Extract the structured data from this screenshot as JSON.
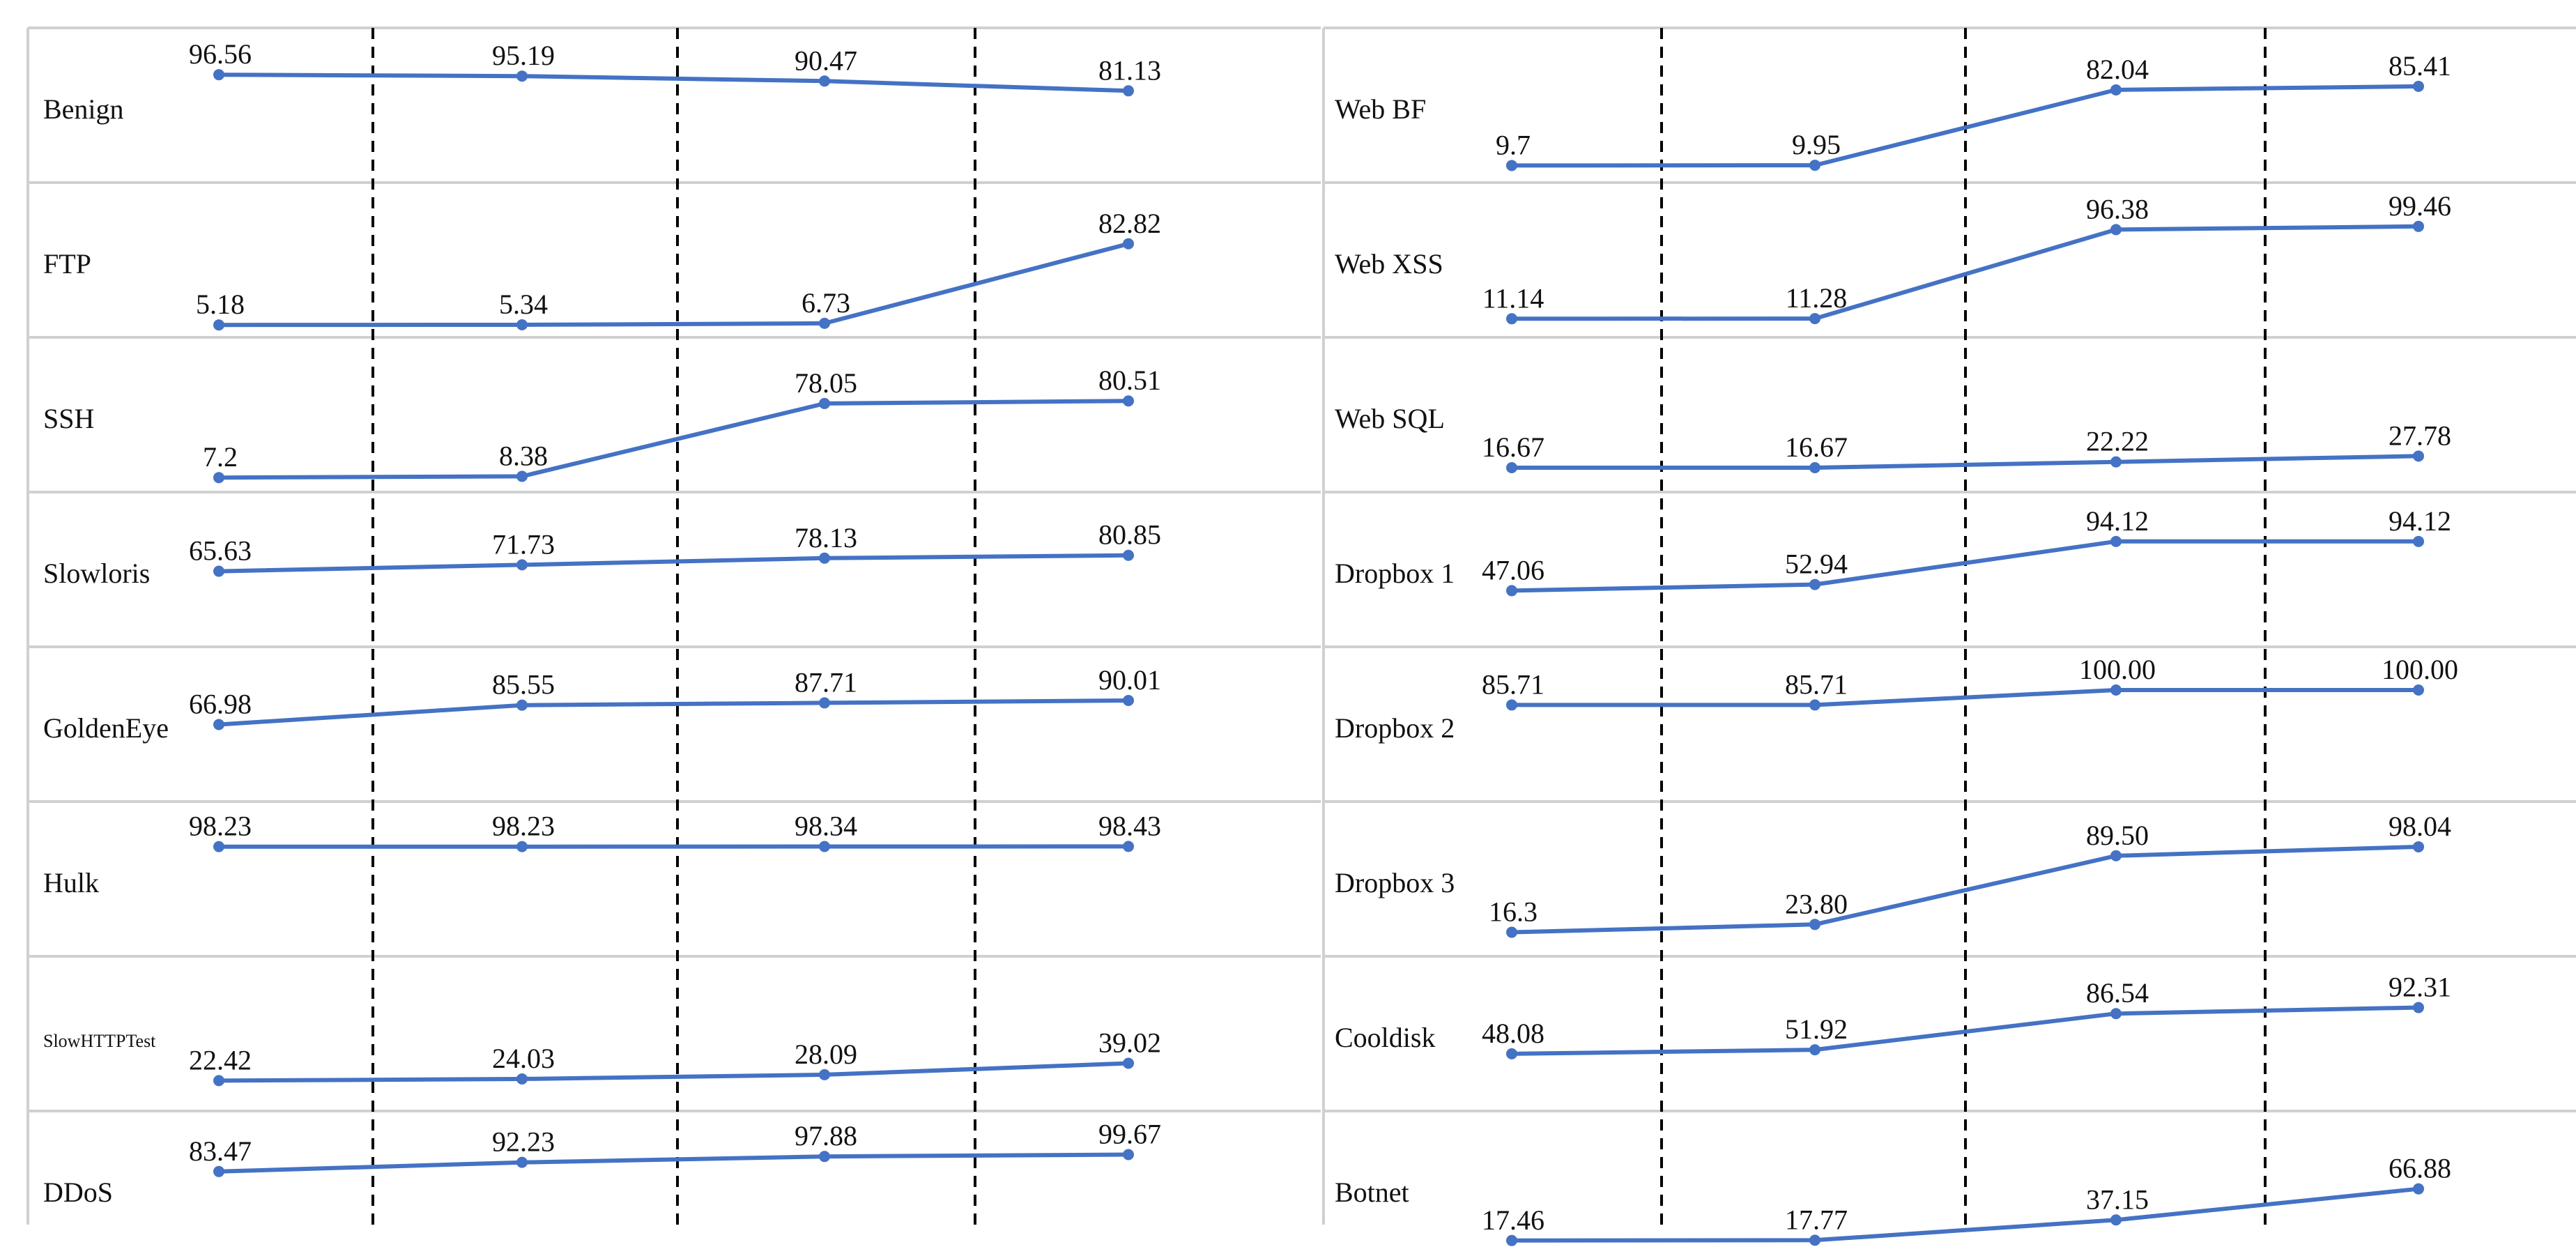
{
  "chart_data": {
    "type": "line",
    "colors": {
      "line": "#4472c4",
      "grid": "#d0d0d0",
      "divider": "#000000"
    },
    "panels": [
      {
        "rows": [
          {
            "label": "Benign",
            "values": [
              96.56,
              95.19,
              90.47,
              81.13
            ],
            "value_labels": [
              "96.56",
              "95.19",
              "90.47",
              "81.13"
            ]
          },
          {
            "label": "FTP",
            "values": [
              5.18,
              5.34,
              6.73,
              82.82
            ],
            "value_labels": [
              "5.18",
              "5.34",
              "6.73",
              "82.82"
            ]
          },
          {
            "label": "SSH",
            "values": [
              7.2,
              8.38,
              78.05,
              80.51
            ],
            "value_labels": [
              "7.2",
              "8.38",
              "78.05",
              "80.51"
            ]
          },
          {
            "label": "Slowloris",
            "values": [
              65.63,
              71.73,
              78.13,
              80.85
            ],
            "value_labels": [
              "65.63",
              "71.73",
              "78.13",
              "80.85"
            ]
          },
          {
            "label": "GoldenEye",
            "values": [
              66.98,
              85.55,
              87.71,
              90.01
            ],
            "value_labels": [
              "66.98",
              "85.55",
              "87.71",
              "90.01"
            ]
          },
          {
            "label": "Hulk",
            "values": [
              98.23,
              98.23,
              98.34,
              98.43
            ],
            "value_labels": [
              "98.23",
              "98.23",
              "98.34",
              "98.43"
            ]
          },
          {
            "label": "SlowHTTPTest",
            "values": [
              22.42,
              24.03,
              28.09,
              39.02
            ],
            "value_labels": [
              "22.42",
              "24.03",
              "28.09",
              "39.02"
            ]
          },
          {
            "label": "DDoS",
            "values": [
              83.47,
              92.23,
              97.88,
              99.67
            ],
            "value_labels": [
              "83.47",
              "92.23",
              "97.88",
              "99.67"
            ]
          }
        ]
      },
      {
        "rows": [
          {
            "label": "Web BF",
            "values": [
              9.7,
              9.95,
              82.04,
              85.41
            ],
            "value_labels": [
              "9.7",
              "9.95",
              "82.04",
              "85.41"
            ]
          },
          {
            "label": "Web XSS",
            "values": [
              11.14,
              11.28,
              96.38,
              99.46
            ],
            "value_labels": [
              "11.14",
              "11.28",
              "96.38",
              "99.46"
            ]
          },
          {
            "label": "Web SQL",
            "values": [
              16.67,
              16.67,
              22.22,
              27.78
            ],
            "value_labels": [
              "16.67",
              "16.67",
              "22.22",
              "27.78"
            ]
          },
          {
            "label": "Dropbox 1",
            "values": [
              47.06,
              52.94,
              94.12,
              94.12
            ],
            "value_labels": [
              "47.06",
              "52.94",
              "94.12",
              "94.12"
            ]
          },
          {
            "label": "Dropbox 2",
            "values": [
              85.71,
              85.71,
              100.0,
              100.0
            ],
            "value_labels": [
              "85.71",
              "85.71",
              "100.00",
              "100.00"
            ]
          },
          {
            "label": "Dropbox 3",
            "values": [
              16.3,
              23.8,
              89.5,
              98.04
            ],
            "value_labels": [
              "16.3",
              "23.80",
              "89.50",
              "98.04"
            ]
          },
          {
            "label": "Cooldisk",
            "values": [
              48.08,
              51.92,
              86.54,
              92.31
            ],
            "value_labels": [
              "48.08",
              "51.92",
              "86.54",
              "92.31"
            ]
          },
          {
            "label": "Botnet",
            "values": [
              17.46,
              17.77,
              37.15,
              66.88
            ],
            "value_labels": [
              "17.46",
              "17.77",
              "37.15",
              "66.88"
            ]
          }
        ]
      }
    ],
    "ylim": [
      0,
      100
    ],
    "grid": true,
    "legend": "none"
  }
}
